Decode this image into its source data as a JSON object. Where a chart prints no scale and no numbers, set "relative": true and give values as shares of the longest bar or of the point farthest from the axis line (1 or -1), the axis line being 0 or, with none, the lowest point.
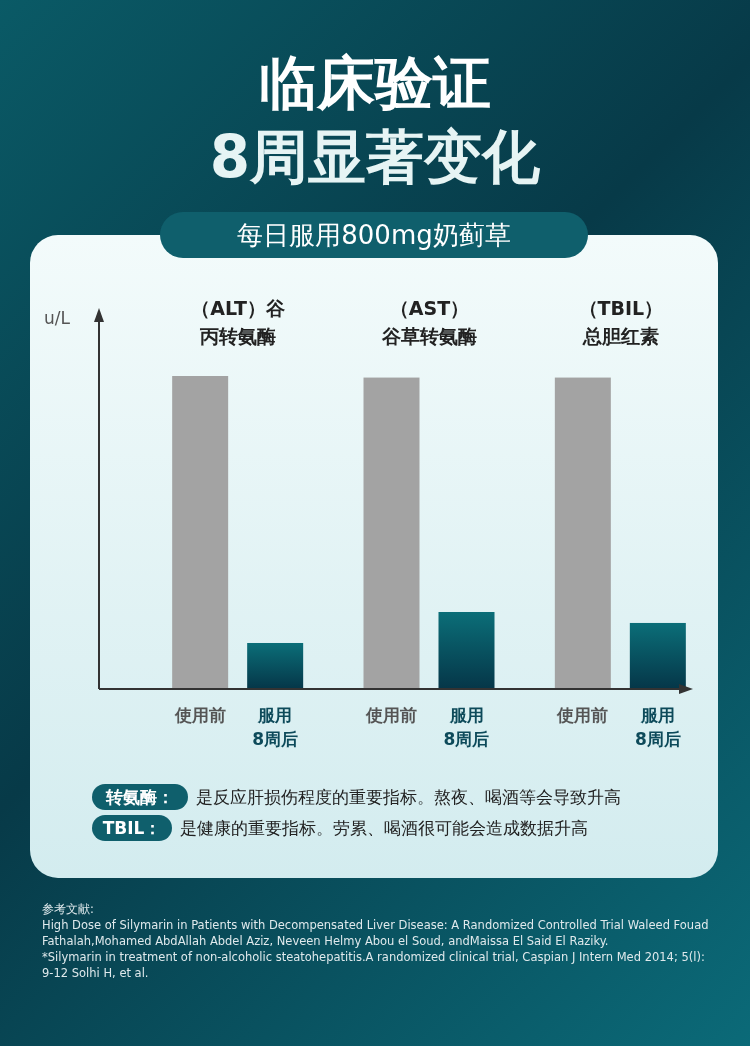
{
  "chart_data": {
    "type": "bar",
    "relative": true,
    "title": "临床验证",
    "subtitle": "8周显著变化",
    "ylabel": "u/L",
    "categories": [
      "（ALT）谷丙转氨酶",
      "（AST）谷草转氨酶",
      "（TBIL）总胆红素"
    ],
    "series": [
      {
        "name": "使用前",
        "color": "#a3a3a3",
        "values": [
          1,
          0.995,
          0.995
        ]
      },
      {
        "name": "服用\n8周后",
        "color": "#0b6e78",
        "values": [
          0.147,
          0.246,
          0.211
        ]
      }
    ],
    "annotations": [
      "每日服用800mg奶蓟草",
      "转氨酶：",
      "是反应肝损伤程度的重要指标。熬夜、喝酒等会导致升高",
      "TBIL：",
      "是健康的重要指标。劳累、喝酒很可能会造成数据升高",
      "参考文献:",
      "High Dose of Silymarin in Patients with Decompensated Liver Disease: A Randomized Controlled Trial Waleed Fouad Fathalah,Mohamed AbdAllah Abdel Aziz, Neveen Helmy Abou el Soud, andMaissa El Said El Raziky.",
      "*Silymarin in treatment of non-alcoholic steatohepatitis.A randomized clinical trial, Caspian J Intern Med 2014; 5(l): 9-12 Solhi H, et al."
    ]
  }
}
